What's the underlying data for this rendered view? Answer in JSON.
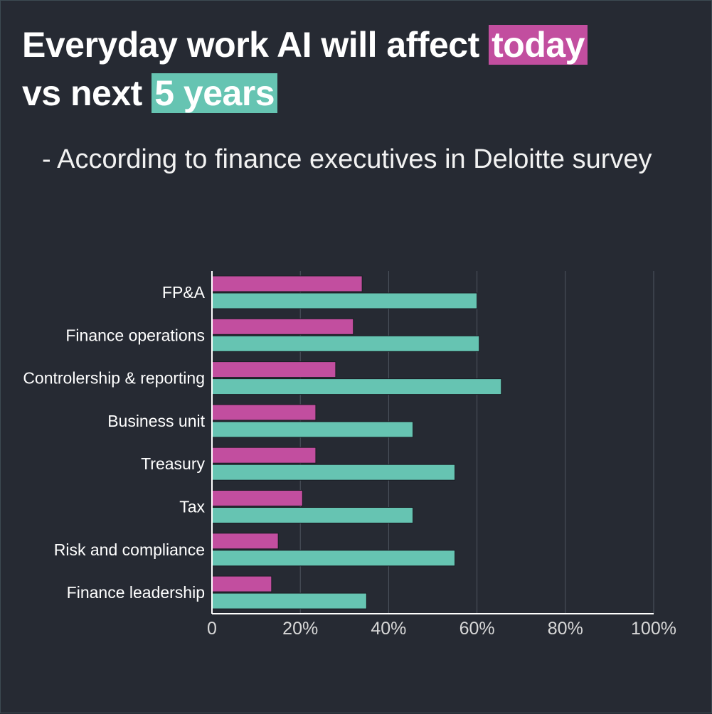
{
  "title": {
    "prefix": "Everyday work AI will affect ",
    "highlight1": "today",
    "middle": "vs next ",
    "highlight2": "5 years"
  },
  "subtitle": "- According to finance executives in Deloitte survey",
  "colors": {
    "background": "#262a33",
    "today": "#c24e9f",
    "next_5_years": "#66c4b2",
    "gridline": "#4e5560",
    "axis": "#ffffff"
  },
  "chart_data": {
    "type": "bar",
    "orientation": "horizontal",
    "categories": [
      "FP&A",
      "Finance operations",
      "Controlership & reporting",
      "Business unit",
      "Treasury",
      "Tax",
      "Risk and compliance",
      "Finance leadership"
    ],
    "series": [
      {
        "values": [
          34,
          32,
          28,
          23.5,
          23.5,
          20.5,
          15,
          13.5
        ]
      },
      {
        "values": [
          60,
          60.5,
          65.5,
          45.5,
          55,
          45.5,
          55,
          35
        ]
      }
    ],
    "xlim": [
      0,
      100
    ],
    "xticks": [
      "0",
      "20%",
      "40%",
      "60%",
      "80%",
      "100%"
    ],
    "xtick_values": [
      0,
      20,
      40,
      60,
      80,
      100
    ],
    "grid": true,
    "legend": "none"
  }
}
